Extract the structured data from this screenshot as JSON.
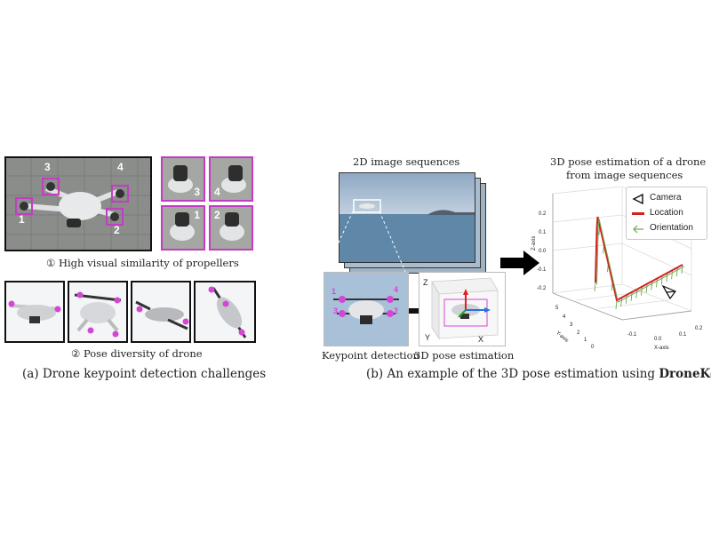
{
  "panel_a": {
    "keypoint_labels": [
      "1",
      "2",
      "3",
      "4"
    ],
    "caption_similarity": "① High visual similarity of propellers",
    "caption_pose": "② Pose diversity of drone",
    "caption": "(a) Drone keypoint detection challenges"
  },
  "panel_b": {
    "sequences_label": "2D image sequences",
    "detection_label": "Keypoint detection",
    "pose_label": "3D pose estimation",
    "plot_title_line1": "3D pose estimation of  a drone",
    "plot_title_line2": "from image sequences",
    "legend": [
      {
        "label": "Camera",
        "color": "#111111"
      },
      {
        "label": "Location",
        "color": "#d62020"
      },
      {
        "label": "Orientation",
        "color": "#6aa84f"
      }
    ],
    "axes": {
      "x": "X-axis",
      "y": "Y-axis",
      "z": "Z-axis"
    },
    "mini_axes": {
      "x": "X",
      "y": "Y",
      "z": "Z"
    },
    "z_ticks": [
      "0.2",
      "0.1",
      "0.0",
      "-0.1",
      "-0.2"
    ],
    "x_ticks": [
      "-0.1",
      "0.0",
      "0.1",
      "0.2"
    ],
    "y_ticks": [
      "5",
      "4",
      "3",
      "2",
      "1",
      "0"
    ],
    "caption_prefix": "(b) An example of the 3D pose estimation using ",
    "caption_bold": "DroneKey"
  }
}
